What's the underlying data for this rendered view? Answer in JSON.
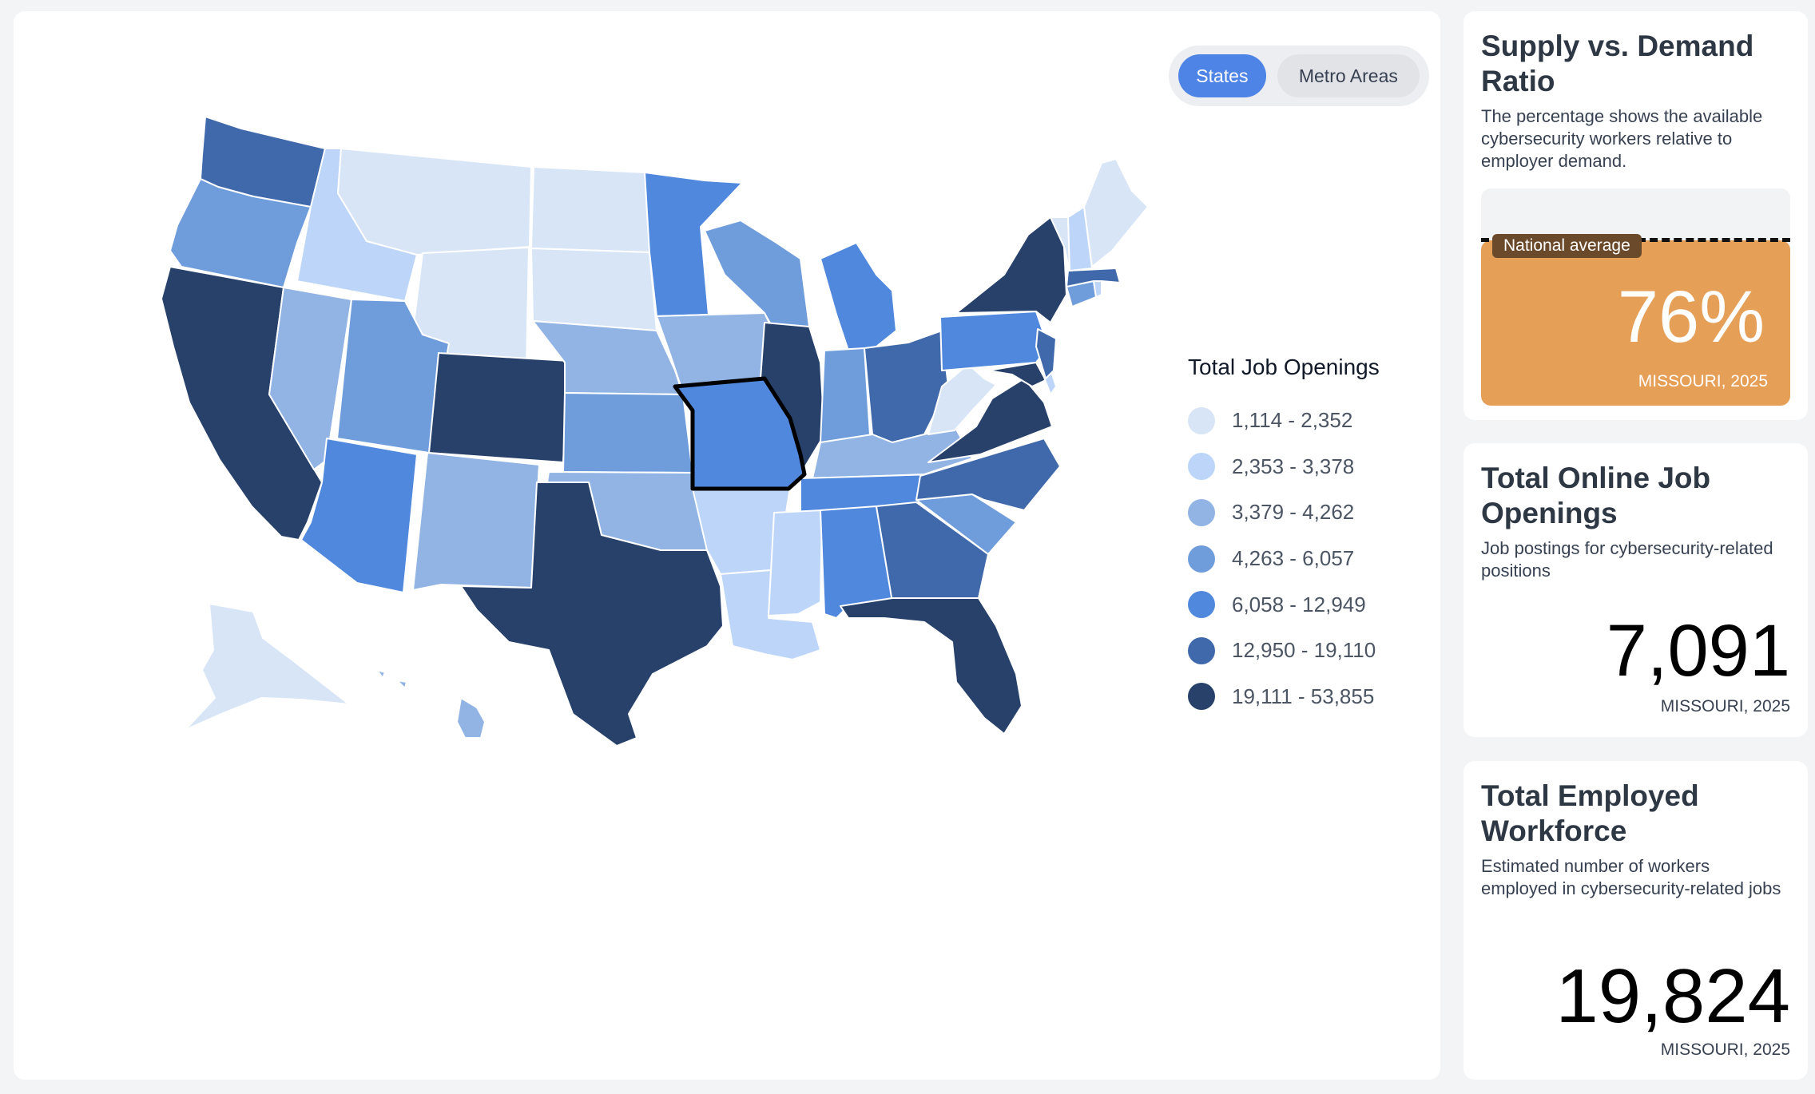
{
  "toggle": {
    "states_label": "States",
    "metro_label": "Metro Areas"
  },
  "legend": {
    "title": "Total Job Openings",
    "items": [
      {
        "label": "1,114 - 2,352",
        "color": "#d7e5f7"
      },
      {
        "label": "2,353 - 3,378",
        "color": "#bcd5f9"
      },
      {
        "label": "3,379 - 4,262",
        "color": "#91b4e4"
      },
      {
        "label": "4,263 - 6,057",
        "color": "#6f9ddc"
      },
      {
        "label": "6,058 - 12,949",
        "color": "#5088de"
      },
      {
        "label": "12,950 - 19,110",
        "color": "#4069ab"
      },
      {
        "label": "19,111 - 53,855",
        "color": "#27416b"
      }
    ]
  },
  "states": [
    {
      "name": "Washington",
      "abbr": "WA",
      "bin": 5
    },
    {
      "name": "Oregon",
      "abbr": "OR",
      "bin": 3
    },
    {
      "name": "California",
      "abbr": "CA",
      "bin": 6
    },
    {
      "name": "Idaho",
      "abbr": "ID",
      "bin": 1
    },
    {
      "name": "Nevada",
      "abbr": "NV",
      "bin": 2
    },
    {
      "name": "Montana",
      "abbr": "MT",
      "bin": 0
    },
    {
      "name": "Wyoming",
      "abbr": "WY",
      "bin": 0
    },
    {
      "name": "Utah",
      "abbr": "UT",
      "bin": 3
    },
    {
      "name": "Arizona",
      "abbr": "AZ",
      "bin": 4
    },
    {
      "name": "Colorado",
      "abbr": "CO",
      "bin": 6
    },
    {
      "name": "New Mexico",
      "abbr": "NM",
      "bin": 2
    },
    {
      "name": "North Dakota",
      "abbr": "ND",
      "bin": 0
    },
    {
      "name": "South Dakota",
      "abbr": "SD",
      "bin": 0
    },
    {
      "name": "Nebraska",
      "abbr": "NE",
      "bin": 2
    },
    {
      "name": "Kansas",
      "abbr": "KS",
      "bin": 3
    },
    {
      "name": "Oklahoma",
      "abbr": "OK",
      "bin": 2
    },
    {
      "name": "Texas",
      "abbr": "TX",
      "bin": 6
    },
    {
      "name": "Minnesota",
      "abbr": "MN",
      "bin": 4
    },
    {
      "name": "Iowa",
      "abbr": "IA",
      "bin": 2
    },
    {
      "name": "Missouri",
      "abbr": "MO",
      "bin": 4,
      "selected": true
    },
    {
      "name": "Arkansas",
      "abbr": "AR",
      "bin": 1
    },
    {
      "name": "Louisiana",
      "abbr": "LA",
      "bin": 1
    },
    {
      "name": "Wisconsin",
      "abbr": "WI",
      "bin": 3
    },
    {
      "name": "Illinois",
      "abbr": "IL",
      "bin": 6
    },
    {
      "name": "Michigan",
      "abbr": "MI",
      "bin": 4
    },
    {
      "name": "Indiana",
      "abbr": "IN",
      "bin": 3
    },
    {
      "name": "Ohio",
      "abbr": "OH",
      "bin": 5
    },
    {
      "name": "Kentucky",
      "abbr": "KY",
      "bin": 2
    },
    {
      "name": "Tennessee",
      "abbr": "TN",
      "bin": 4
    },
    {
      "name": "Mississippi",
      "abbr": "MS",
      "bin": 1
    },
    {
      "name": "Alabama",
      "abbr": "AL",
      "bin": 4
    },
    {
      "name": "Georgia",
      "abbr": "GA",
      "bin": 5
    },
    {
      "name": "Florida",
      "abbr": "FL",
      "bin": 6
    },
    {
      "name": "South Carolina",
      "abbr": "SC",
      "bin": 3
    },
    {
      "name": "North Carolina",
      "abbr": "NC",
      "bin": 5
    },
    {
      "name": "Virginia",
      "abbr": "VA",
      "bin": 6
    },
    {
      "name": "West Virginia",
      "abbr": "WV",
      "bin": 0
    },
    {
      "name": "Pennsylvania",
      "abbr": "PA",
      "bin": 4
    },
    {
      "name": "New York",
      "abbr": "NY",
      "bin": 6
    },
    {
      "name": "Maryland",
      "abbr": "MD",
      "bin": 6
    },
    {
      "name": "Delaware",
      "abbr": "DE",
      "bin": 1
    },
    {
      "name": "New Jersey",
      "abbr": "NJ",
      "bin": 5
    },
    {
      "name": "Connecticut",
      "abbr": "CT",
      "bin": 3
    },
    {
      "name": "Rhode Island",
      "abbr": "RI",
      "bin": 1
    },
    {
      "name": "Massachusetts",
      "abbr": "MA",
      "bin": 5
    },
    {
      "name": "Vermont",
      "abbr": "VT",
      "bin": 0
    },
    {
      "name": "New Hampshire",
      "abbr": "NH",
      "bin": 1
    },
    {
      "name": "Maine",
      "abbr": "ME",
      "bin": 0
    },
    {
      "name": "Alaska",
      "abbr": "AK",
      "bin": 0
    },
    {
      "name": "Hawaii",
      "abbr": "HI",
      "bin": 2
    }
  ],
  "cards": {
    "ratio": {
      "title": "Supply vs. Demand Ratio",
      "desc": "The percentage shows the available cybersecurity workers relative to employer demand.",
      "national_label": "National average",
      "value": "76%",
      "value_fraction": 0.76,
      "state_label": "MISSOURI, 2025",
      "fill_color": "#e69f57"
    },
    "openings": {
      "title": "Total Online Job Openings",
      "desc": "Job postings for cybersecurity-related positions",
      "value": "7,091",
      "state_label": "MISSOURI, 2025"
    },
    "workforce": {
      "title": "Total Employed Workforce",
      "desc": "Estimated number of workers employed in cybersecurity-related jobs",
      "value": "19,824",
      "state_label": "MISSOURI, 2025"
    }
  }
}
